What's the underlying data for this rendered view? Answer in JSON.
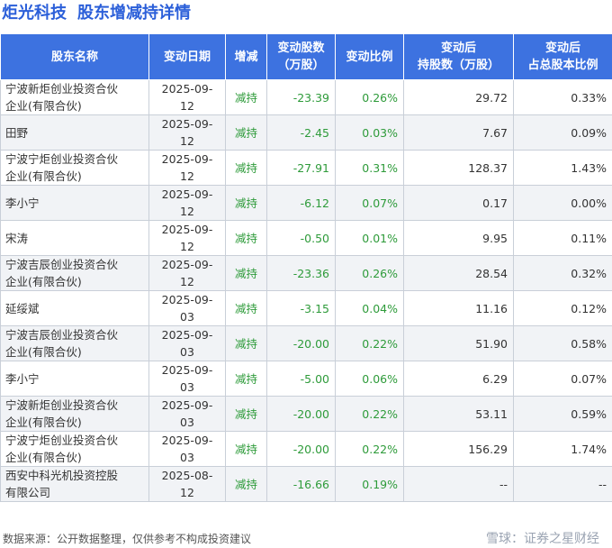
{
  "title": {
    "company": "炬光科技",
    "subject": "股东增减持详情"
  },
  "table": {
    "headers": [
      [
        "股东名称"
      ],
      [
        "变动日期"
      ],
      [
        "增减"
      ],
      [
        "变动股数",
        "（万股）"
      ],
      [
        "变动比例"
      ],
      [
        "变动后",
        "持股数（万股）"
      ],
      [
        "变动后",
        "占总股本比例"
      ]
    ],
    "rows": [
      {
        "name": [
          "宁波新炬创业投资合伙",
          "企业(有限合伙)"
        ],
        "date": "2025-09-12",
        "direction": "减持",
        "change": "-23.39",
        "ratio": "0.26%",
        "after_shares": "29.72",
        "after_ratio": "0.33%"
      },
      {
        "name": [
          "田野"
        ],
        "date": "2025-09-12",
        "direction": "减持",
        "change": "-2.45",
        "ratio": "0.03%",
        "after_shares": "7.67",
        "after_ratio": "0.09%"
      },
      {
        "name": [
          "宁波宁炬创业投资合伙",
          "企业(有限合伙)"
        ],
        "date": "2025-09-12",
        "direction": "减持",
        "change": "-27.91",
        "ratio": "0.31%",
        "after_shares": "128.37",
        "after_ratio": "1.43%"
      },
      {
        "name": [
          "李小宁"
        ],
        "date": "2025-09-12",
        "direction": "减持",
        "change": "-6.12",
        "ratio": "0.07%",
        "after_shares": "0.17",
        "after_ratio": "0.00%"
      },
      {
        "name": [
          "宋涛"
        ],
        "date": "2025-09-12",
        "direction": "减持",
        "change": "-0.50",
        "ratio": "0.01%",
        "after_shares": "9.95",
        "after_ratio": "0.11%"
      },
      {
        "name": [
          "宁波吉辰创业投资合伙",
          "企业(有限合伙)"
        ],
        "date": "2025-09-12",
        "direction": "减持",
        "change": "-23.36",
        "ratio": "0.26%",
        "after_shares": "28.54",
        "after_ratio": "0.32%"
      },
      {
        "name": [
          "延绥斌"
        ],
        "date": "2025-09-03",
        "direction": "减持",
        "change": "-3.15",
        "ratio": "0.04%",
        "after_shares": "11.16",
        "after_ratio": "0.12%"
      },
      {
        "name": [
          "宁波吉辰创业投资合伙",
          "企业(有限合伙)"
        ],
        "date": "2025-09-03",
        "direction": "减持",
        "change": "-20.00",
        "ratio": "0.22%",
        "after_shares": "51.90",
        "after_ratio": "0.58%"
      },
      {
        "name": [
          "李小宁"
        ],
        "date": "2025-09-03",
        "direction": "减持",
        "change": "-5.00",
        "ratio": "0.06%",
        "after_shares": "6.29",
        "after_ratio": "0.07%"
      },
      {
        "name": [
          "宁波新炬创业投资合伙",
          "企业(有限合伙)"
        ],
        "date": "2025-09-03",
        "direction": "减持",
        "change": "-20.00",
        "ratio": "0.22%",
        "after_shares": "53.11",
        "after_ratio": "0.59%"
      },
      {
        "name": [
          "宁波宁炬创业投资合伙",
          "企业(有限合伙)"
        ],
        "date": "2025-09-03",
        "direction": "减持",
        "change": "-20.00",
        "ratio": "0.22%",
        "after_shares": "156.29",
        "after_ratio": "1.74%"
      },
      {
        "name": [
          "西安中科光机投资控股",
          "有限公司"
        ],
        "date": "2025-08-12",
        "direction": "减持",
        "change": "-16.66",
        "ratio": "0.19%",
        "after_shares": "--",
        "after_ratio": "--"
      }
    ]
  },
  "footer": {
    "source": "数据来源：公开数据整理，仅供参考不构成投资建议",
    "brand": "雪球：证券之星财经"
  },
  "watermark": "证券之星",
  "colors": {
    "title": "#2b5fd9",
    "header_bg": "#3d72e0",
    "green": "#2e9b3a"
  }
}
